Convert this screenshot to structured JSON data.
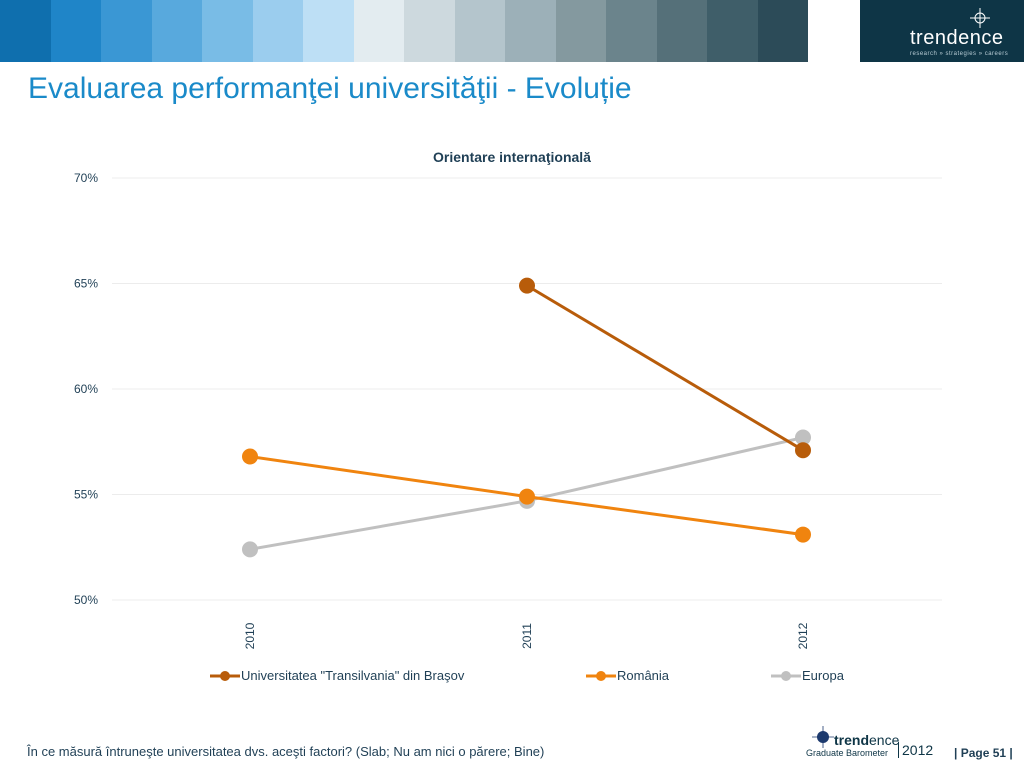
{
  "header": {
    "band_colors": [
      "#0f6fae",
      "#1f85c8",
      "#3a97d4",
      "#58a9dd",
      "#79bce6",
      "#9bcdee",
      "#bddff5",
      "#e3ecf0",
      "#cdd9de",
      "#b4c5cc",
      "#9cb0b8",
      "#84999f",
      "#6b848c",
      "#557079",
      "#3f5e69",
      "#2c4b58",
      "#1d3d4a"
    ],
    "brand_name": "trendence",
    "brand_tagline": "research » strategies » careers"
  },
  "page_title": "Evaluarea performanţei universităţii - Evoluție",
  "chart_data": {
    "type": "line",
    "title": "Orientare internaţională",
    "categories": [
      "2010",
      "2011",
      "2012"
    ],
    "ylim": [
      0.5,
      0.7
    ],
    "yticks": [
      "70%",
      "65%",
      "60%",
      "55%",
      "50%"
    ],
    "ytick_values": [
      0.7,
      0.65,
      0.6,
      0.55,
      0.5
    ],
    "grid": true,
    "legend_position": "bottom",
    "series": [
      {
        "name": "Universitatea \"Transilvania\" din Braşov",
        "color": "#b85c0a",
        "values": [
          null,
          0.649,
          0.571
        ]
      },
      {
        "name": "România",
        "color": "#f0840f",
        "values": [
          0.568,
          0.549,
          0.531
        ]
      },
      {
        "name": "Europa",
        "color": "#c0c0c0",
        "values": [
          0.524,
          0.547,
          0.577
        ]
      }
    ]
  },
  "footer": {
    "question": "În ce măsură întruneşte universitatea dvs. aceşti factori? (Slab; Nu am nici o părere; Bine)",
    "logo_bold": "trend",
    "logo_light": "ence",
    "logo_sub": "Graduate Barometer",
    "logo_year": "2012",
    "page": "| Page 51 |"
  }
}
